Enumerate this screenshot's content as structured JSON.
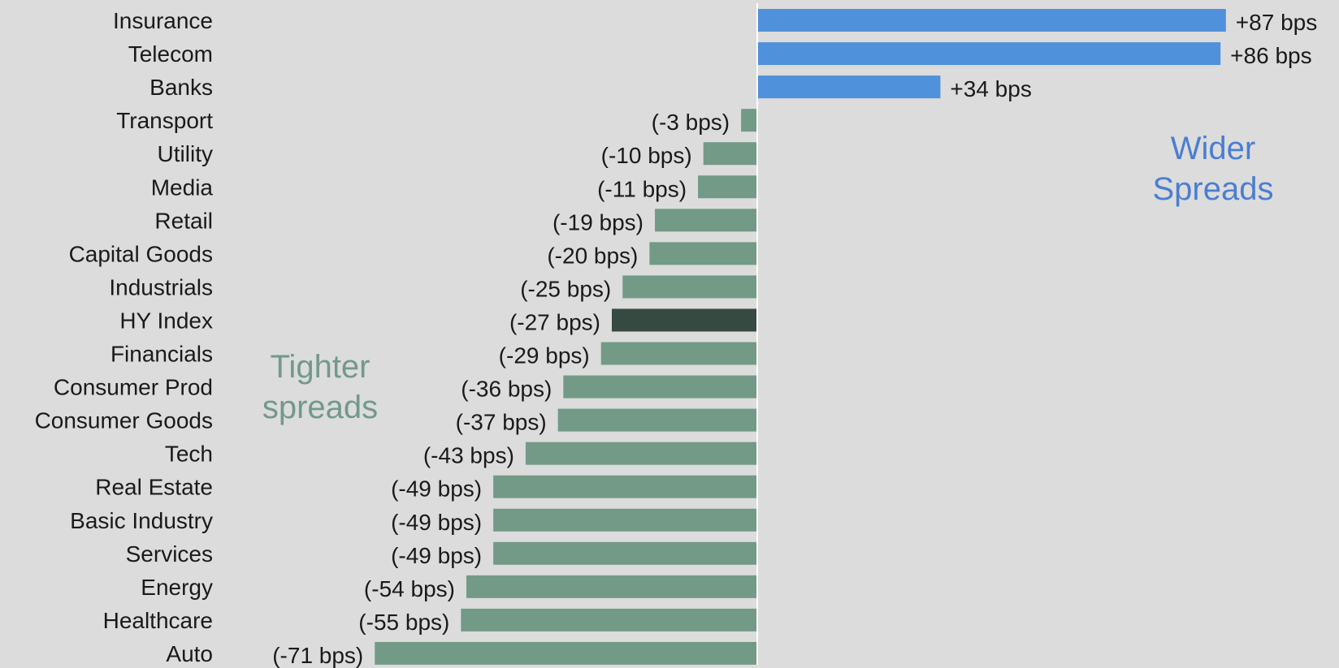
{
  "chart_data": {
    "type": "bar",
    "orientation": "horizontal",
    "title": "",
    "xlabel": "",
    "ylabel": "",
    "grid": false,
    "legend": "none",
    "xlim": [
      -75,
      90
    ],
    "categories": [
      "Insurance",
      "Telecom",
      "Banks",
      "Transport",
      "Utility",
      "Media",
      "Retail",
      "Capital Goods",
      "Industrials",
      "HY Index",
      "Financials",
      "Consumer Prod",
      "Consumer Goods",
      "Tech",
      "Real Estate",
      "Basic Industry",
      "Services",
      "Energy",
      "Healthcare",
      "Auto"
    ],
    "values": [
      87,
      86,
      34,
      -3,
      -10,
      -11,
      -19,
      -20,
      -25,
      -27,
      -29,
      -36,
      -37,
      -43,
      -49,
      -49,
      -49,
      -54,
      -55,
      -71
    ],
    "data_labels": [
      "+87 bps",
      "+86 bps",
      "+34 bps",
      "(-3 bps)",
      "(-10 bps)",
      "(-11 bps)",
      "(-19 bps)",
      "(-20 bps)",
      "(-25 bps)",
      "(-27 bps)",
      "(-29 bps)",
      "(-36 bps)",
      "(-37 bps)",
      "(-43 bps)",
      "(-49 bps)",
      "(-49 bps)",
      "(-49 bps)",
      "(-54 bps)",
      "(-55 bps)",
      "(-71 bps)"
    ],
    "highlight_category": "HY Index",
    "annotations": {
      "wider": [
        "Wider",
        "Spreads"
      ],
      "tighter": [
        "Tighter",
        "spreads"
      ]
    },
    "colors": {
      "positive": "#4f91db",
      "negative": "#729a87",
      "highlight": "#374a42",
      "background": "#dcdcdc",
      "wider_text": "#4b7ed1",
      "tighter_text": "#72998a"
    }
  }
}
